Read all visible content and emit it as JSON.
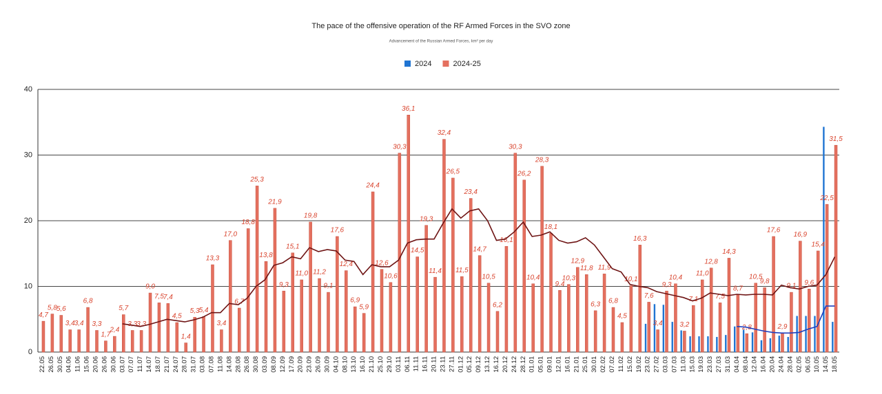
{
  "chart_data": {
    "type": "bar",
    "title": "The pace of the offensive operation of the RF Armed Forces in the SVO zone",
    "subtitle": "Advancement of the Russian Armed Forces, km² per day",
    "categories": [
      "22.05",
      "26.05",
      "30.05",
      "04.06",
      "11.06",
      "15.06",
      "20.06",
      "26.06",
      "30.06",
      "03.07",
      "07.07",
      "11.07",
      "14.07",
      "18.07",
      "21.07",
      "24.07",
      "28.07",
      "31.07",
      "03.08",
      "07.08",
      "11.08",
      "14.08",
      "28.08",
      "26.08",
      "30.08",
      "03.09",
      "08.09",
      "12.09",
      "17.09",
      "20.09",
      "23.09",
      "26.09",
      "30.09",
      "04.10",
      "08.10",
      "13.10",
      "16.10",
      "21.10",
      "25.10",
      "29.10",
      "03.11",
      "06.11",
      "11.11",
      "16.11",
      "20.11",
      "23.11",
      "27.11",
      "01.12",
      "05.12",
      "09.12",
      "13.12",
      "16.12",
      "20.12",
      "24.12",
      "28.12",
      "01.01",
      "05.01",
      "09.01",
      "12.01",
      "16.01",
      "21.01",
      "25.01",
      "30.01",
      "02.02",
      "07.02",
      "11.02",
      "15.02",
      "19.02",
      "23.02",
      "27.02",
      "03.03",
      "07.03",
      "11.03",
      "15.03",
      "19.03",
      "23.03",
      "27.03",
      "31.03",
      "04.04",
      "08.04",
      "12.04",
      "16.04",
      "20.04",
      "24.04",
      "28.04",
      "02.05",
      "06.05",
      "10.05",
      "14.05",
      "18.05"
    ],
    "series": [
      {
        "name": "2024",
        "color": "#1f74d2",
        "values": [
          null,
          null,
          null,
          null,
          null,
          null,
          null,
          null,
          null,
          null,
          null,
          null,
          null,
          null,
          null,
          null,
          null,
          null,
          null,
          null,
          null,
          null,
          null,
          null,
          null,
          null,
          null,
          null,
          null,
          null,
          null,
          null,
          null,
          null,
          null,
          null,
          null,
          null,
          null,
          null,
          null,
          null,
          null,
          null,
          null,
          null,
          null,
          null,
          null,
          null,
          null,
          null,
          null,
          null,
          null,
          null,
          null,
          null,
          null,
          null,
          null,
          null,
          null,
          null,
          null,
          null,
          null,
          null,
          4.3,
          7.3,
          7.2,
          4.6,
          3.3,
          2.4,
          2.4,
          2.4,
          2.3,
          2.6,
          3.9,
          3.4,
          3.0,
          1.8,
          2.1,
          2.5,
          2.3,
          5.5,
          5.5,
          5.5,
          34.3,
          4.6
        ]
      },
      {
        "name": "2024-25",
        "color": "#e4705f",
        "values": [
          4.7,
          5.8,
          5.6,
          3.4,
          3.4,
          6.8,
          3.3,
          1.7,
          2.4,
          5.7,
          3.3,
          3.3,
          9.0,
          7.5,
          7.4,
          4.5,
          1.4,
          5.3,
          5.4,
          13.3,
          3.4,
          17.0,
          6.7,
          18.8,
          25.3,
          13.8,
          21.9,
          9.3,
          15.1,
          11.0,
          19.8,
          11.2,
          9.1,
          17.6,
          12.4,
          6.9,
          5.9,
          24.4,
          12.6,
          10.6,
          30.3,
          36.1,
          14.5,
          19.3,
          11.4,
          32.4,
          26.5,
          11.5,
          23.4,
          14.7,
          10.5,
          6.2,
          16.1,
          30.3,
          26.2,
          10.4,
          28.3,
          18.1,
          9.4,
          10.3,
          12.9,
          11.8,
          6.3,
          11.9,
          6.8,
          4.5,
          10.1,
          16.3,
          7.6,
          3.4,
          9.3,
          10.4,
          3.2,
          7.1,
          11.0,
          12.8,
          7.5,
          14.3,
          8.7,
          2.8,
          10.5,
          9.8,
          17.6,
          2.9,
          9.1,
          16.9,
          9.6,
          15.4,
          22.5,
          31.5
        ],
        "value_labels": [
          "4,7",
          "5,8",
          "5,6",
          "3,4",
          "3,4",
          "6,8",
          "3,3",
          "1,7",
          "2,4",
          "5,7",
          "3,3",
          "3,3",
          "9,0",
          "7,5",
          "7,4",
          "4,5",
          "1,4",
          "5,3",
          "5,4",
          "13,3",
          "3,4",
          "17,0",
          "6,7",
          "18,8",
          "25,3",
          "13,8",
          "21,9",
          "9,3",
          "15,1",
          "11,0",
          "19,8",
          "11,2",
          "9,1",
          "17,6",
          "12,4",
          "6,9",
          "5,9",
          "24,4",
          "12,6",
          "10,6",
          "30,3",
          "36,1",
          "14,5",
          "19,3",
          "11,4",
          "32,4",
          "26,5",
          "11,5",
          "23,4",
          "14,7",
          "10,5",
          "6,2",
          "16,1",
          "30,3",
          "26,2",
          "10,4",
          "28,3",
          "18,1",
          "9,4",
          "10,3",
          "12,9",
          "11,8",
          "6,3",
          "11,9",
          "6,8",
          "4,5",
          "10,1",
          "16,3",
          "7,6",
          "3,4",
          "9,3",
          "10,4",
          "3,2",
          "7,1",
          "11,0",
          "12,8",
          "7,5",
          "14,3",
          "8,7",
          "2,8",
          "10,5",
          "9,8",
          "17,6",
          "2,9",
          "9,1",
          "16,9",
          "9,6",
          "15,4",
          "22,5",
          "31,5"
        ]
      }
    ],
    "lines": [
      {
        "color": "#6e1414",
        "values": [
          null,
          null,
          null,
          null,
          null,
          null,
          null,
          null,
          null,
          4.3,
          4.1,
          3.9,
          4.2,
          4.6,
          5.0,
          4.8,
          4.6,
          4.9,
          5.3,
          6.0,
          6.0,
          7.4,
          7.2,
          8.2,
          10.0,
          11.0,
          13.2,
          13.6,
          14.5,
          14.2,
          15.9,
          15.3,
          15.6,
          15.4,
          14.0,
          13.8,
          11.8,
          13.3,
          13.0,
          13.0,
          14.0,
          16.6,
          17.1,
          17.2,
          17.2,
          19.6,
          21.8,
          20.4,
          21.5,
          21.8,
          20.0,
          17.0,
          17.2,
          18.3,
          19.8,
          17.6,
          17.8,
          18.3,
          17.0,
          16.6,
          16.8,
          17.4,
          16.3,
          14.5,
          12.7,
          12.2,
          10.3,
          10.0,
          9.8,
          9.2,
          8.9,
          8.6,
          8.3,
          7.8,
          8.2,
          9.0,
          8.8,
          8.6,
          8.8,
          8.7,
          8.8,
          8.8,
          8.7,
          10.2,
          9.8,
          9.6,
          10.0,
          10.2,
          11.8,
          14.5
        ]
      },
      {
        "color": "#1f3fbf",
        "values": [
          null,
          null,
          null,
          null,
          null,
          null,
          null,
          null,
          null,
          null,
          null,
          null,
          null,
          null,
          null,
          null,
          null,
          null,
          null,
          null,
          null,
          null,
          null,
          null,
          null,
          null,
          null,
          null,
          null,
          null,
          null,
          null,
          null,
          null,
          null,
          null,
          null,
          null,
          null,
          null,
          null,
          null,
          null,
          null,
          null,
          null,
          null,
          null,
          null,
          null,
          null,
          null,
          null,
          null,
          null,
          null,
          null,
          null,
          null,
          null,
          null,
          null,
          null,
          null,
          null,
          null,
          null,
          null,
          null,
          null,
          null,
          null,
          null,
          null,
          null,
          null,
          null,
          null,
          3.9,
          3.8,
          3.5,
          3.2,
          3.0,
          2.9,
          2.9,
          3.0,
          3.5,
          3.9,
          7.0,
          7.0
        ]
      }
    ],
    "ylim": [
      0,
      40
    ],
    "yticks": [
      0,
      10,
      20,
      30,
      40
    ],
    "grid": true,
    "legend": "top"
  }
}
